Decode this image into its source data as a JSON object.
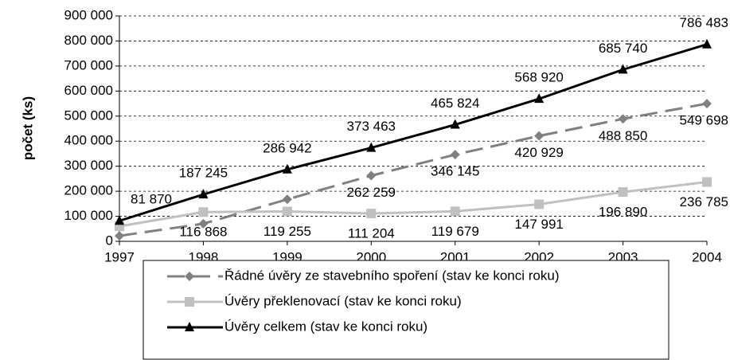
{
  "chart_data": {
    "type": "line",
    "categories": [
      "1997",
      "1998",
      "1999",
      "2000",
      "2001",
      "2002",
      "2003",
      "2004"
    ],
    "y_label": "počet (ks)",
    "ylim": [
      0,
      900000
    ],
    "yticks": [
      {
        "value": 0,
        "label": "0"
      },
      {
        "value": 100000,
        "label": "100 000"
      },
      {
        "value": 200000,
        "label": "200 000"
      },
      {
        "value": 300000,
        "label": "300 000"
      },
      {
        "value": 400000,
        "label": "400 000"
      },
      {
        "value": 500000,
        "label": "500 000"
      },
      {
        "value": 600000,
        "label": "600 000"
      },
      {
        "value": 700000,
        "label": "700 000"
      },
      {
        "value": 800000,
        "label": "800 000"
      },
      {
        "value": 900000,
        "label": "900 000"
      }
    ],
    "grid": true,
    "legend": "bottom",
    "series": [
      {
        "name": "Řádné úvěry ze stavebního spoření (stav ke konci roku)",
        "color": "#808080",
        "marker": "diamond",
        "dashed": true,
        "values": [
          22000,
          70377,
          167687,
          262259,
          346145,
          420929,
          488850,
          549698
        ],
        "value_labels": [
          null,
          null,
          null,
          "262 259",
          "346 145",
          "420 929",
          "488 850",
          "549 698"
        ]
      },
      {
        "name": "Úvěry překlenovací (stav ke konci roku)",
        "color": "#c0c0c0",
        "marker": "square",
        "dashed": false,
        "values": [
          60000,
          116868,
          119255,
          111204,
          119679,
          147991,
          196890,
          236785
        ],
        "value_labels": [
          null,
          "116 868",
          "119 255",
          "111 204",
          "119 679",
          "147 991",
          "196 890",
          "236 785"
        ]
      },
      {
        "name": "Úvěry celkem (stav ke konci roku)",
        "color": "#000000",
        "marker": "triangle",
        "dashed": false,
        "values": [
          81870,
          187245,
          286942,
          373463,
          465824,
          568920,
          685740,
          786483
        ],
        "value_labels": [
          "81 870",
          "187 245",
          "286 942",
          "373 463",
          "465 824",
          "568 920",
          "685 740",
          "786 483"
        ]
      }
    ]
  }
}
